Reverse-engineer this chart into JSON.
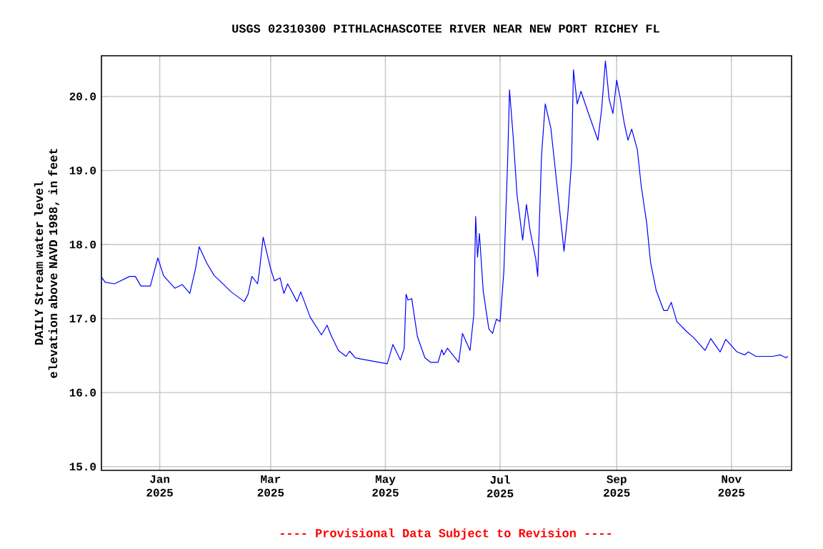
{
  "chart_data": {
    "type": "line",
    "title": "USGS 02310300 PITHLACHASCOTEE RIVER NEAR NEW PORT RICHEY FL",
    "ylabel": "DAILY Stream water level elevation above NAVD 1988, in feet",
    "annotations": [
      "---- Provisional Data Subject to Revision ----"
    ],
    "x": [
      "2024-12-01",
      "2024-12-03",
      "2024-12-08",
      "2024-12-16",
      "2024-12-19",
      "2024-12-22",
      "2024-12-27",
      "2024-12-31",
      "2025-01-03",
      "2025-01-09",
      "2025-01-13",
      "2025-01-17",
      "2025-01-20",
      "2025-01-22",
      "2025-01-26",
      "2025-01-30",
      "2025-02-02",
      "2025-02-08",
      "2025-02-15",
      "2025-02-17",
      "2025-02-19",
      "2025-02-22",
      "2025-02-23",
      "2025-02-25",
      "2025-02-26",
      "2025-03-01",
      "2025-03-03",
      "2025-03-06",
      "2025-03-08",
      "2025-03-10",
      "2025-03-15",
      "2025-03-17",
      "2025-03-22",
      "2025-03-28",
      "2025-03-31",
      "2025-04-02",
      "2025-04-06",
      "2025-04-10",
      "2025-04-12",
      "2025-04-15",
      "2025-04-23",
      "2025-05-02",
      "2025-05-05",
      "2025-05-09",
      "2025-05-11",
      "2025-05-12",
      "2025-05-13",
      "2025-05-15",
      "2025-05-18",
      "2025-05-22",
      "2025-05-25",
      "2025-05-29",
      "2025-05-31",
      "2025-06-01",
      "2025-06-03",
      "2025-06-09",
      "2025-06-11",
      "2025-06-15",
      "2025-06-17",
      "2025-06-18",
      "2025-06-19",
      "2025-06-20",
      "2025-06-22",
      "2025-06-25",
      "2025-06-27",
      "2025-06-29",
      "2025-07-01",
      "2025-07-03",
      "2025-07-05",
      "2025-07-06",
      "2025-07-08",
      "2025-07-10",
      "2025-07-13",
      "2025-07-15",
      "2025-07-17",
      "2025-07-20",
      "2025-07-21",
      "2025-07-23",
      "2025-07-25",
      "2025-07-28",
      "2025-07-31",
      "2025-08-04",
      "2025-08-06",
      "2025-08-08",
      "2025-08-09",
      "2025-08-11",
      "2025-08-13",
      "2025-08-17",
      "2025-08-22",
      "2025-08-24",
      "2025-08-26",
      "2025-08-28",
      "2025-08-30",
      "2025-09-01",
      "2025-09-03",
      "2025-09-05",
      "2025-09-07",
      "2025-09-09",
      "2025-09-12",
      "2025-09-14",
      "2025-09-17",
      "2025-09-19",
      "2025-09-22",
      "2025-09-26",
      "2025-09-28",
      "2025-09-30",
      "2025-10-03",
      "2025-10-08",
      "2025-10-12",
      "2025-10-18",
      "2025-10-21",
      "2025-10-26",
      "2025-10-29",
      "2025-11-04",
      "2025-11-08",
      "2025-11-10",
      "2025-11-14",
      "2025-11-23",
      "2025-11-27",
      "2025-11-30",
      "2025-12-01"
    ],
    "series": [
      {
        "color": "#0000ff",
        "values": [
          17.56,
          17.49,
          17.47,
          17.57,
          17.57,
          17.44,
          17.44,
          17.82,
          17.58,
          17.41,
          17.46,
          17.34,
          17.67,
          17.97,
          17.75,
          17.58,
          17.51,
          17.36,
          17.23,
          17.33,
          17.57,
          17.47,
          17.64,
          18.1,
          17.99,
          17.67,
          17.51,
          17.55,
          17.34,
          17.47,
          17.23,
          17.36,
          17.02,
          16.78,
          16.91,
          16.78,
          16.57,
          16.49,
          16.56,
          16.47,
          16.43,
          16.39,
          16.65,
          16.44,
          16.6,
          17.33,
          17.25,
          17.27,
          16.76,
          16.47,
          16.41,
          16.41,
          16.58,
          16.51,
          16.6,
          16.41,
          16.8,
          16.57,
          17.05,
          18.38,
          17.83,
          18.15,
          17.38,
          16.86,
          16.8,
          16.99,
          16.96,
          17.64,
          19.12,
          20.09,
          19.44,
          18.67,
          18.06,
          18.54,
          18.18,
          17.8,
          17.57,
          19.19,
          19.9,
          19.57,
          18.86,
          17.91,
          18.41,
          19.12,
          20.36,
          19.9,
          20.07,
          19.77,
          19.41,
          19.83,
          20.48,
          19.96,
          19.77,
          20.22,
          19.96,
          19.64,
          19.41,
          19.56,
          19.28,
          18.8,
          18.28,
          17.76,
          17.38,
          17.11,
          17.11,
          17.22,
          16.96,
          16.83,
          16.74,
          16.57,
          16.73,
          16.55,
          16.72,
          16.55,
          16.51,
          16.55,
          16.49,
          16.49,
          16.51,
          16.47,
          16.49
        ]
      }
    ],
    "xlim": [
      "2024-12-01",
      "2025-12-03"
    ],
    "xticks": [
      {
        "value": "2025-01-01",
        "label": "Jan 2025"
      },
      {
        "value": "2025-03-01",
        "label": "Mar 2025"
      },
      {
        "value": "2025-05-01",
        "label": "May 2025"
      },
      {
        "value": "2025-07-01",
        "label": "Jul 2025"
      },
      {
        "value": "2025-09-01",
        "label": "Sep 2025"
      },
      {
        "value": "2025-11-01",
        "label": "Nov 2025"
      }
    ],
    "ylim": [
      14.95,
      20.55
    ],
    "yticks": [
      {
        "value": 15,
        "label": "15.0"
      },
      {
        "value": 16,
        "label": "16.0"
      },
      {
        "value": 17,
        "label": "17.0"
      },
      {
        "value": 18,
        "label": "18.0"
      },
      {
        "value": 19,
        "label": "19.0"
      },
      {
        "value": 20,
        "label": "20.0"
      }
    ],
    "grid": true,
    "marker": "none",
    "line_style": "solid"
  }
}
